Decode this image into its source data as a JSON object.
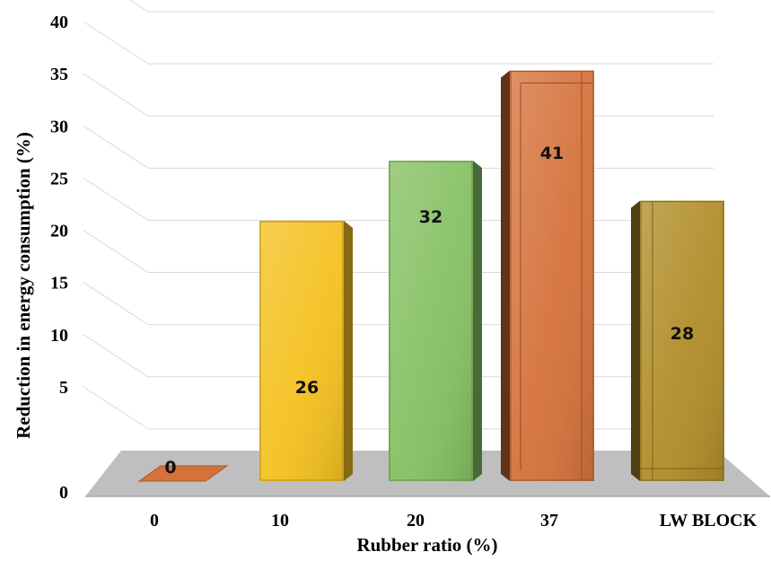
{
  "chart_data": {
    "type": "bar",
    "categories": [
      "0",
      "10",
      "20",
      "37",
      "LW BLOCK"
    ],
    "values": [
      0,
      26,
      32,
      41,
      28
    ],
    "xlabel": "Rubber ratio (%)",
    "ylabel": "Reduction in energy consumption (%)",
    "ylim": [
      0,
      45
    ],
    "yticks": [
      "0",
      "5",
      "10",
      "15",
      "20",
      "25",
      "30",
      "35",
      "40",
      "45"
    ],
    "grid": true,
    "style": "3d-column",
    "colors": [
      "#d5713a",
      "#f4c11f",
      "#85c062",
      "#d5713a",
      "#b08d28"
    ],
    "floor_color": "#bfbfbf"
  }
}
